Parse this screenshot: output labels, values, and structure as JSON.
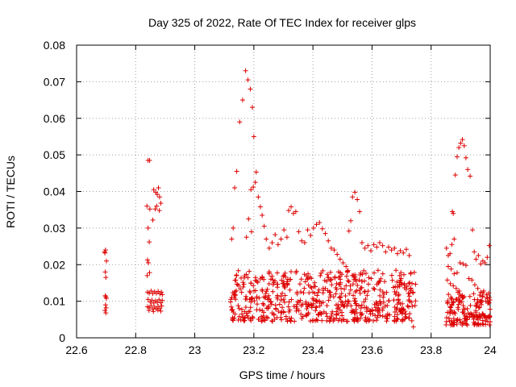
{
  "chart_data": {
    "type": "scatter",
    "title": "Day 325 of 2022, Rate Of TEC Index for receiver glps",
    "xlabel": "GPS time / hours",
    "ylabel": "ROTI / TECUs",
    "xlim": [
      22.6,
      24.0
    ],
    "ylim": [
      0,
      0.08
    ],
    "x_ticks": [
      22.6,
      22.8,
      23.0,
      23.2,
      23.4,
      23.6,
      23.8,
      24.0
    ],
    "x_tick_labels": [
      "22.6",
      "22.8",
      "23",
      "23.2",
      "23.4",
      "23.6",
      "23.8",
      "24"
    ],
    "y_ticks": [
      0,
      0.01,
      0.02,
      0.03,
      0.04,
      0.05,
      0.06,
      0.07,
      0.08
    ],
    "y_tick_labels": [
      "0",
      "0.01",
      "0.02",
      "0.03",
      "0.04",
      "0.05",
      "0.06",
      "0.07",
      "0.08"
    ],
    "grid": true,
    "marker": "+",
    "marker_color": "#dd0000",
    "series": [
      {
        "name": "ROTI",
        "points": [
          [
            22.695,
            0.0235
          ],
          [
            22.696,
            0.0232
          ],
          [
            22.698,
            0.024
          ],
          [
            22.697,
            0.018
          ],
          [
            22.699,
            0.0165
          ],
          [
            22.697,
            0.0115
          ],
          [
            22.699,
            0.0112
          ],
          [
            22.701,
            0.0108
          ],
          [
            22.698,
            0.009
          ],
          [
            22.7,
            0.0082
          ],
          [
            22.696,
            0.0075
          ],
          [
            22.699,
            0.0068
          ],
          [
            22.701,
            0.021
          ],
          [
            22.842,
            0.0485
          ],
          [
            22.847,
            0.0485
          ],
          [
            22.838,
            0.036
          ],
          [
            22.848,
            0.0352
          ],
          [
            22.842,
            0.03
          ],
          [
            22.846,
            0.0262
          ],
          [
            22.84,
            0.0213
          ],
          [
            22.843,
            0.0205
          ],
          [
            22.847,
            0.0178
          ],
          [
            22.839,
            0.017
          ],
          [
            22.861,
            0.0405
          ],
          [
            22.868,
            0.0398
          ],
          [
            22.873,
            0.0392
          ],
          [
            22.877,
            0.041
          ],
          [
            22.881,
            0.0385
          ],
          [
            22.866,
            0.0352
          ],
          [
            22.871,
            0.036
          ],
          [
            22.885,
            0.0368
          ],
          [
            22.88,
            0.0348
          ],
          [
            22.858,
            0.0322
          ],
          [
            22.84,
            0.0125
          ],
          [
            22.846,
            0.0122
          ],
          [
            22.852,
            0.0128
          ],
          [
            22.858,
            0.0121
          ],
          [
            22.864,
            0.0126
          ],
          [
            22.87,
            0.0122
          ],
          [
            22.876,
            0.0127
          ],
          [
            22.882,
            0.012
          ],
          [
            22.887,
            0.0125
          ],
          [
            22.89,
            0.0118
          ],
          [
            22.842,
            0.0105
          ],
          [
            22.849,
            0.0098
          ],
          [
            22.855,
            0.0103
          ],
          [
            22.861,
            0.0095
          ],
          [
            22.867,
            0.0101
          ],
          [
            22.873,
            0.0097
          ],
          [
            22.879,
            0.0104
          ],
          [
            22.885,
            0.0096
          ],
          [
            22.89,
            0.0102
          ],
          [
            22.84,
            0.0085
          ],
          [
            22.846,
            0.0082
          ],
          [
            22.852,
            0.0088
          ],
          [
            22.858,
            0.0079
          ],
          [
            22.864,
            0.0084
          ],
          [
            22.87,
            0.008
          ],
          [
            22.876,
            0.0086
          ],
          [
            22.882,
            0.0081
          ],
          [
            22.888,
            0.0087
          ],
          [
            22.845,
            0.0075
          ],
          [
            22.86,
            0.0072
          ],
          [
            22.875,
            0.0076
          ],
          [
            22.885,
            0.0073
          ],
          [
            23.125,
            0.027
          ],
          [
            23.13,
            0.03
          ],
          [
            23.135,
            0.041
          ],
          [
            23.142,
            0.0455
          ],
          [
            23.152,
            0.059
          ],
          [
            23.162,
            0.065
          ],
          [
            23.172,
            0.073
          ],
          [
            23.18,
            0.0705
          ],
          [
            23.188,
            0.068
          ],
          [
            23.195,
            0.063
          ],
          [
            23.2,
            0.055
          ],
          [
            23.19,
            0.0405
          ],
          [
            23.198,
            0.0412
          ],
          [
            23.205,
            0.0425
          ],
          [
            23.208,
            0.0453
          ],
          [
            23.215,
            0.0385
          ],
          [
            23.222,
            0.0358
          ],
          [
            23.228,
            0.0335
          ],
          [
            23.235,
            0.0305
          ],
          [
            23.182,
            0.0325
          ],
          [
            23.175,
            0.0275
          ],
          [
            23.192,
            0.029
          ],
          [
            23.242,
            0.027
          ],
          [
            23.252,
            0.0245
          ],
          [
            23.262,
            0.026
          ],
          [
            23.272,
            0.0282
          ],
          [
            23.282,
            0.0255
          ],
          [
            23.292,
            0.027
          ],
          [
            23.302,
            0.0295
          ],
          [
            23.312,
            0.0275
          ],
          [
            23.318,
            0.0348
          ],
          [
            23.326,
            0.0358
          ],
          [
            23.334,
            0.034
          ],
          [
            23.342,
            0.0345
          ],
          [
            23.352,
            0.029
          ],
          [
            23.362,
            0.0265
          ],
          [
            23.372,
            0.026
          ],
          [
            23.382,
            0.0295
          ],
          [
            23.392,
            0.028
          ],
          [
            23.402,
            0.03
          ],
          [
            23.412,
            0.031
          ],
          [
            23.422,
            0.0315
          ],
          [
            23.432,
            0.0298
          ],
          [
            23.442,
            0.0285
          ],
          [
            23.452,
            0.0265
          ],
          [
            23.462,
            0.0245
          ],
          [
            23.472,
            0.024
          ],
          [
            23.482,
            0.0228
          ],
          [
            23.492,
            0.0215
          ],
          [
            23.502,
            0.0205
          ],
          [
            23.512,
            0.0195
          ],
          [
            23.522,
            0.0292
          ],
          [
            23.528,
            0.032
          ],
          [
            23.534,
            0.0385
          ],
          [
            23.542,
            0.0398
          ],
          [
            23.55,
            0.0378
          ],
          [
            23.558,
            0.0345
          ],
          [
            23.566,
            0.026
          ],
          [
            23.576,
            0.0245
          ],
          [
            23.586,
            0.0252
          ],
          [
            23.596,
            0.0238
          ],
          [
            23.606,
            0.0255
          ],
          [
            23.616,
            0.0248
          ],
          [
            23.626,
            0.026
          ],
          [
            23.636,
            0.0252
          ],
          [
            23.646,
            0.0235
          ],
          [
            23.656,
            0.0248
          ],
          [
            23.666,
            0.024
          ],
          [
            23.676,
            0.0245
          ],
          [
            23.686,
            0.023
          ],
          [
            23.696,
            0.0238
          ],
          [
            23.706,
            0.0232
          ],
          [
            23.716,
            0.0242
          ],
          [
            23.726,
            0.0225
          ],
          [
            23.872,
            0.0345
          ],
          [
            23.875,
            0.034
          ],
          [
            23.878,
            0.027
          ],
          [
            23.882,
            0.0445
          ],
          [
            23.888,
            0.0495
          ],
          [
            23.894,
            0.052
          ],
          [
            23.9,
            0.0532
          ],
          [
            23.906,
            0.0542
          ],
          [
            23.912,
            0.0525
          ],
          [
            23.918,
            0.0492
          ],
          [
            23.924,
            0.046
          ],
          [
            23.932,
            0.0442
          ],
          [
            23.94,
            0.0295
          ],
          [
            23.946,
            0.0235
          ],
          [
            23.952,
            0.0215
          ],
          [
            23.96,
            0.0225
          ],
          [
            23.968,
            0.0202
          ],
          [
            23.975,
            0.021
          ],
          [
            23.982,
            0.0205
          ],
          [
            23.99,
            0.022
          ],
          [
            23.997,
            0.0252
          ],
          [
            23.852,
            0.0245
          ],
          [
            23.858,
            0.0225
          ],
          [
            23.864,
            0.023
          ],
          [
            23.87,
            0.0255
          ],
          [
            23.858,
            0.0195
          ],
          [
            23.868,
            0.0188
          ],
          [
            23.878,
            0.0175
          ],
          [
            23.888,
            0.0178
          ],
          [
            23.898,
            0.0205
          ],
          [
            23.908,
            0.0202
          ],
          [
            23.918,
            0.0198
          ],
          [
            23.928,
            0.0162
          ],
          [
            23.938,
            0.0158
          ],
          [
            23.948,
            0.0145
          ],
          [
            23.958,
            0.0135
          ],
          [
            23.968,
            0.0125
          ],
          [
            23.978,
            0.0128
          ],
          [
            23.988,
            0.0118
          ],
          [
            23.995,
            0.0122
          ],
          [
            23.855,
            0.0158
          ],
          [
            23.865,
            0.0148
          ],
          [
            23.875,
            0.0142
          ],
          [
            23.885,
            0.0135
          ],
          [
            23.895,
            0.0128
          ]
        ]
      }
    ]
  }
}
